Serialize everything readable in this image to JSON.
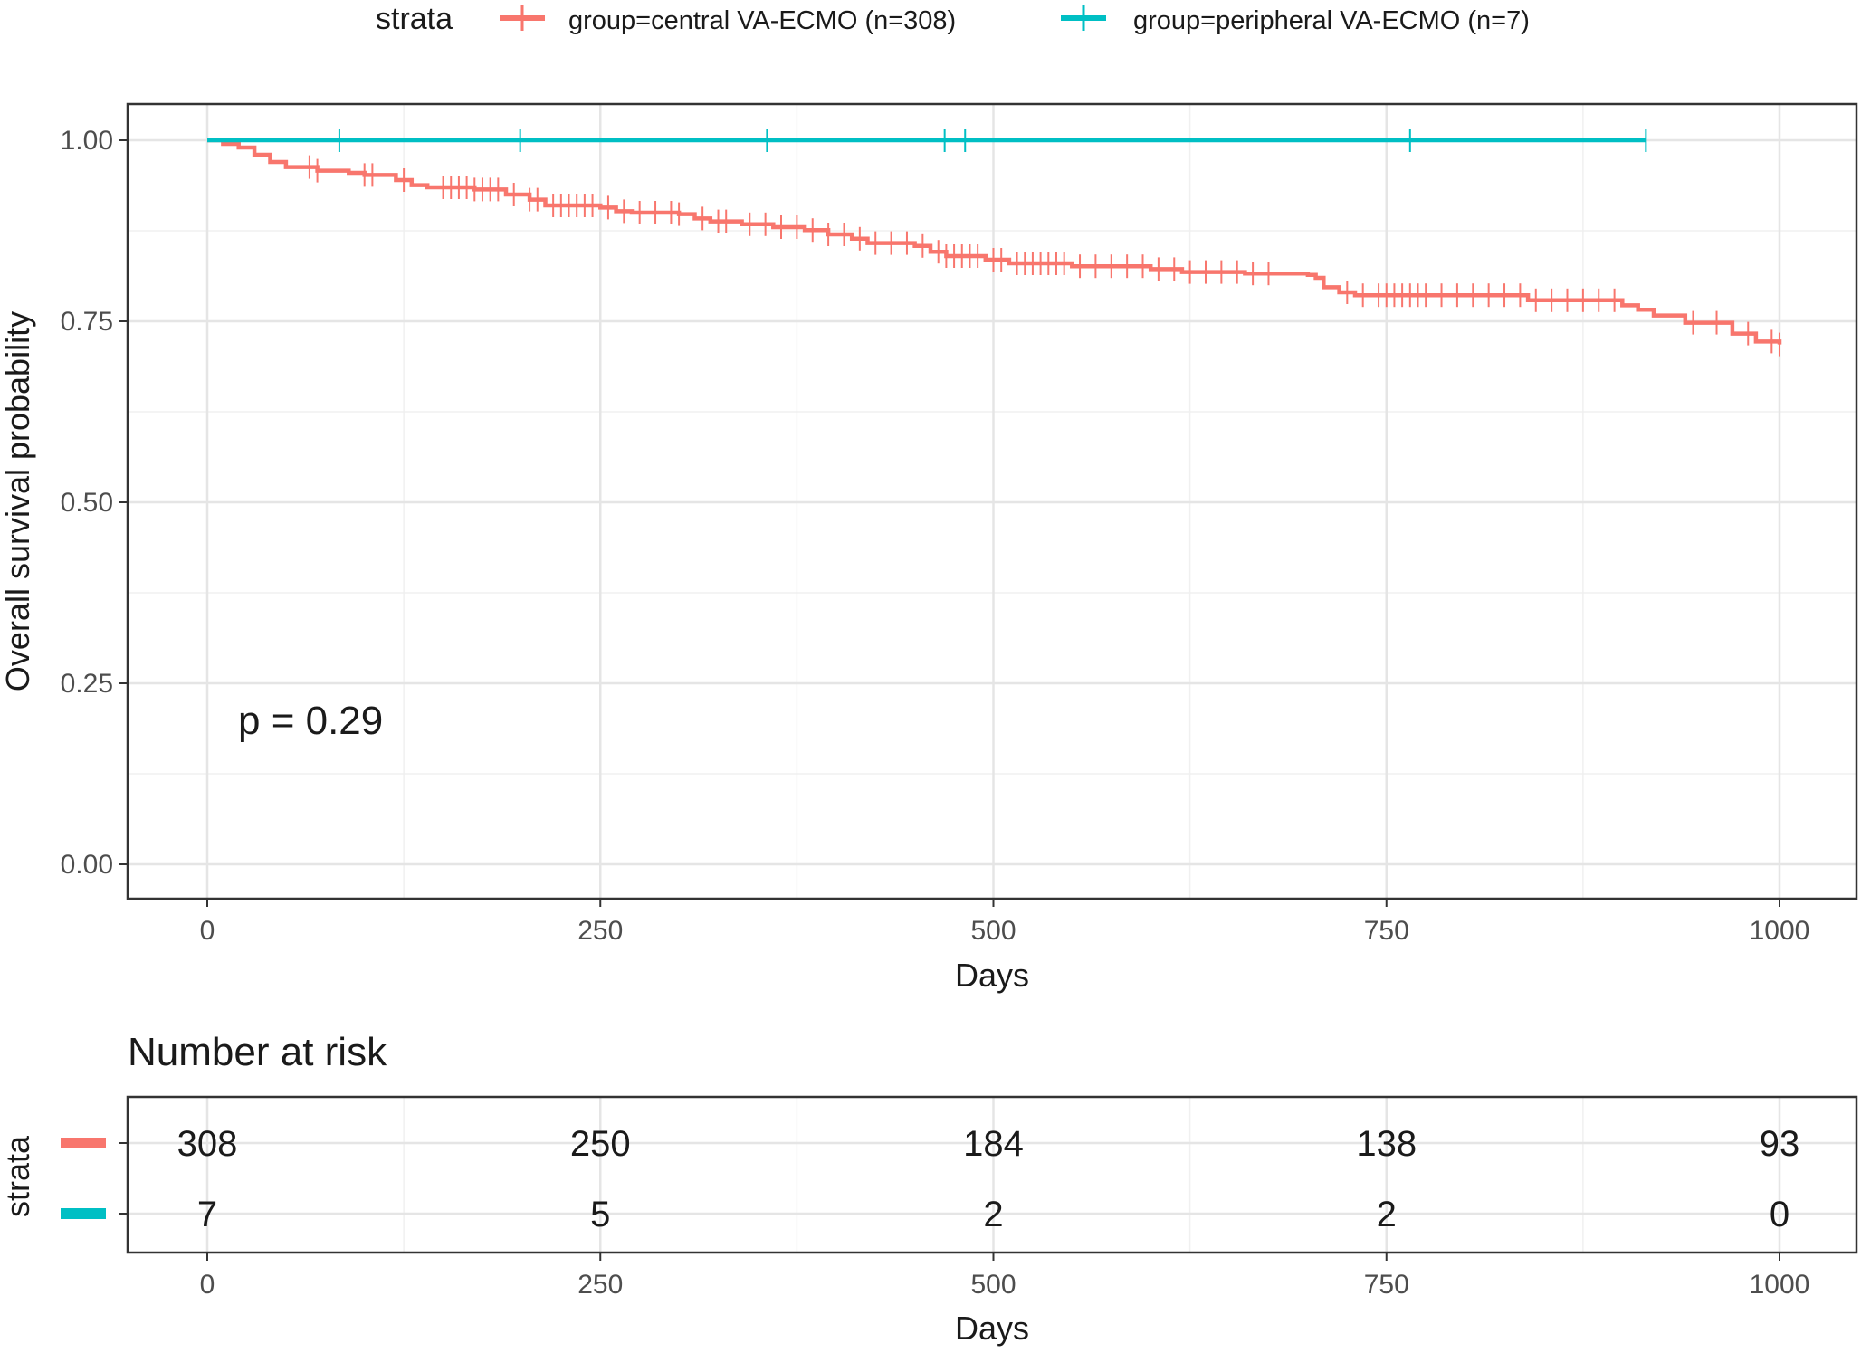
{
  "legend": {
    "title": "strata",
    "items": [
      {
        "label": "group=central VA-ECMO (n=308)",
        "color": "#F8766D"
      },
      {
        "label": "group=peripheral VA-ECMO (n=7)",
        "color": "#00BFC4"
      }
    ]
  },
  "chart_data": [
    {
      "type": "line",
      "subtype": "kaplan-meier step",
      "xlabel": "Days",
      "ylabel": "Overall survival probability",
      "xlim": [
        0,
        1000
      ],
      "ylim": [
        0,
        1
      ],
      "xticks": [
        0,
        250,
        500,
        750,
        1000
      ],
      "yticks": [
        "0.00",
        "0.25",
        "0.50",
        "0.75",
        "1.00"
      ],
      "grid": true,
      "legend_position": "top",
      "annotation": "p = 0.29",
      "series": [
        {
          "name": "group=central VA-ECMO (n=308)",
          "color": "#F8766D",
          "steps": [
            [
              0,
              1.0
            ],
            [
              10,
              0.995
            ],
            [
              20,
              0.99
            ],
            [
              30,
              0.98
            ],
            [
              40,
              0.97
            ],
            [
              50,
              0.963
            ],
            [
              70,
              0.958
            ],
            [
              90,
              0.955
            ],
            [
              100,
              0.952
            ],
            [
              120,
              0.945
            ],
            [
              130,
              0.938
            ],
            [
              140,
              0.935
            ],
            [
              170,
              0.932
            ],
            [
              190,
              0.925
            ],
            [
              205,
              0.918
            ],
            [
              215,
              0.91
            ],
            [
              250,
              0.907
            ],
            [
              260,
              0.902
            ],
            [
              270,
              0.9
            ],
            [
              300,
              0.898
            ],
            [
              310,
              0.892
            ],
            [
              320,
              0.888
            ],
            [
              340,
              0.884
            ],
            [
              360,
              0.88
            ],
            [
              380,
              0.876
            ],
            [
              395,
              0.87
            ],
            [
              410,
              0.864
            ],
            [
              420,
              0.858
            ],
            [
              450,
              0.854
            ],
            [
              460,
              0.846
            ],
            [
              470,
              0.84
            ],
            [
              495,
              0.835
            ],
            [
              510,
              0.83
            ],
            [
              550,
              0.826
            ],
            [
              600,
              0.822
            ],
            [
              620,
              0.818
            ],
            [
              660,
              0.816
            ],
            [
              700,
              0.814
            ],
            [
              705,
              0.81
            ],
            [
              710,
              0.797
            ],
            [
              720,
              0.79
            ],
            [
              730,
              0.786
            ],
            [
              840,
              0.779
            ],
            [
              900,
              0.772
            ],
            [
              910,
              0.766
            ],
            [
              920,
              0.758
            ],
            [
              940,
              0.748
            ],
            [
              970,
              0.733
            ],
            [
              985,
              0.722
            ],
            [
              1000,
              0.718
            ]
          ],
          "censor_times": [
            65,
            70,
            100,
            105,
            125,
            150,
            155,
            160,
            165,
            170,
            175,
            180,
            185,
            195,
            205,
            210,
            220,
            225,
            230,
            235,
            240,
            245,
            255,
            265,
            275,
            285,
            295,
            300,
            315,
            325,
            330,
            345,
            355,
            365,
            375,
            385,
            395,
            405,
            415,
            425,
            435,
            445,
            455,
            465,
            470,
            475,
            480,
            485,
            490,
            500,
            505,
            515,
            520,
            525,
            530,
            535,
            540,
            545,
            555,
            565,
            575,
            585,
            595,
            605,
            615,
            625,
            635,
            645,
            655,
            665,
            675,
            725,
            735,
            745,
            750,
            755,
            760,
            765,
            770,
            775,
            785,
            795,
            805,
            815,
            825,
            835,
            845,
            855,
            865,
            875,
            885,
            895,
            945,
            960,
            980,
            995,
            1000
          ]
        },
        {
          "name": "group=peripheral VA-ECMO (n=7)",
          "color": "#00BFC4",
          "steps": [
            [
              0,
              1.0
            ],
            [
              915,
              1.0
            ]
          ],
          "censor_times": [
            84,
            199,
            356,
            469,
            482,
            765,
            915
          ]
        }
      ]
    },
    {
      "type": "table",
      "title": "Number at risk",
      "ylabel": "strata",
      "xlabel": "Days",
      "xlim": [
        0,
        1000
      ],
      "xticks": [
        0,
        250,
        500,
        750,
        1000
      ],
      "rows": [
        {
          "color": "#F8766D",
          "values": [
            "308",
            "250",
            "184",
            "138",
            "93"
          ]
        },
        {
          "color": "#00BFC4",
          "values": [
            "7",
            "5",
            "2",
            "2",
            "0"
          ]
        }
      ]
    }
  ]
}
